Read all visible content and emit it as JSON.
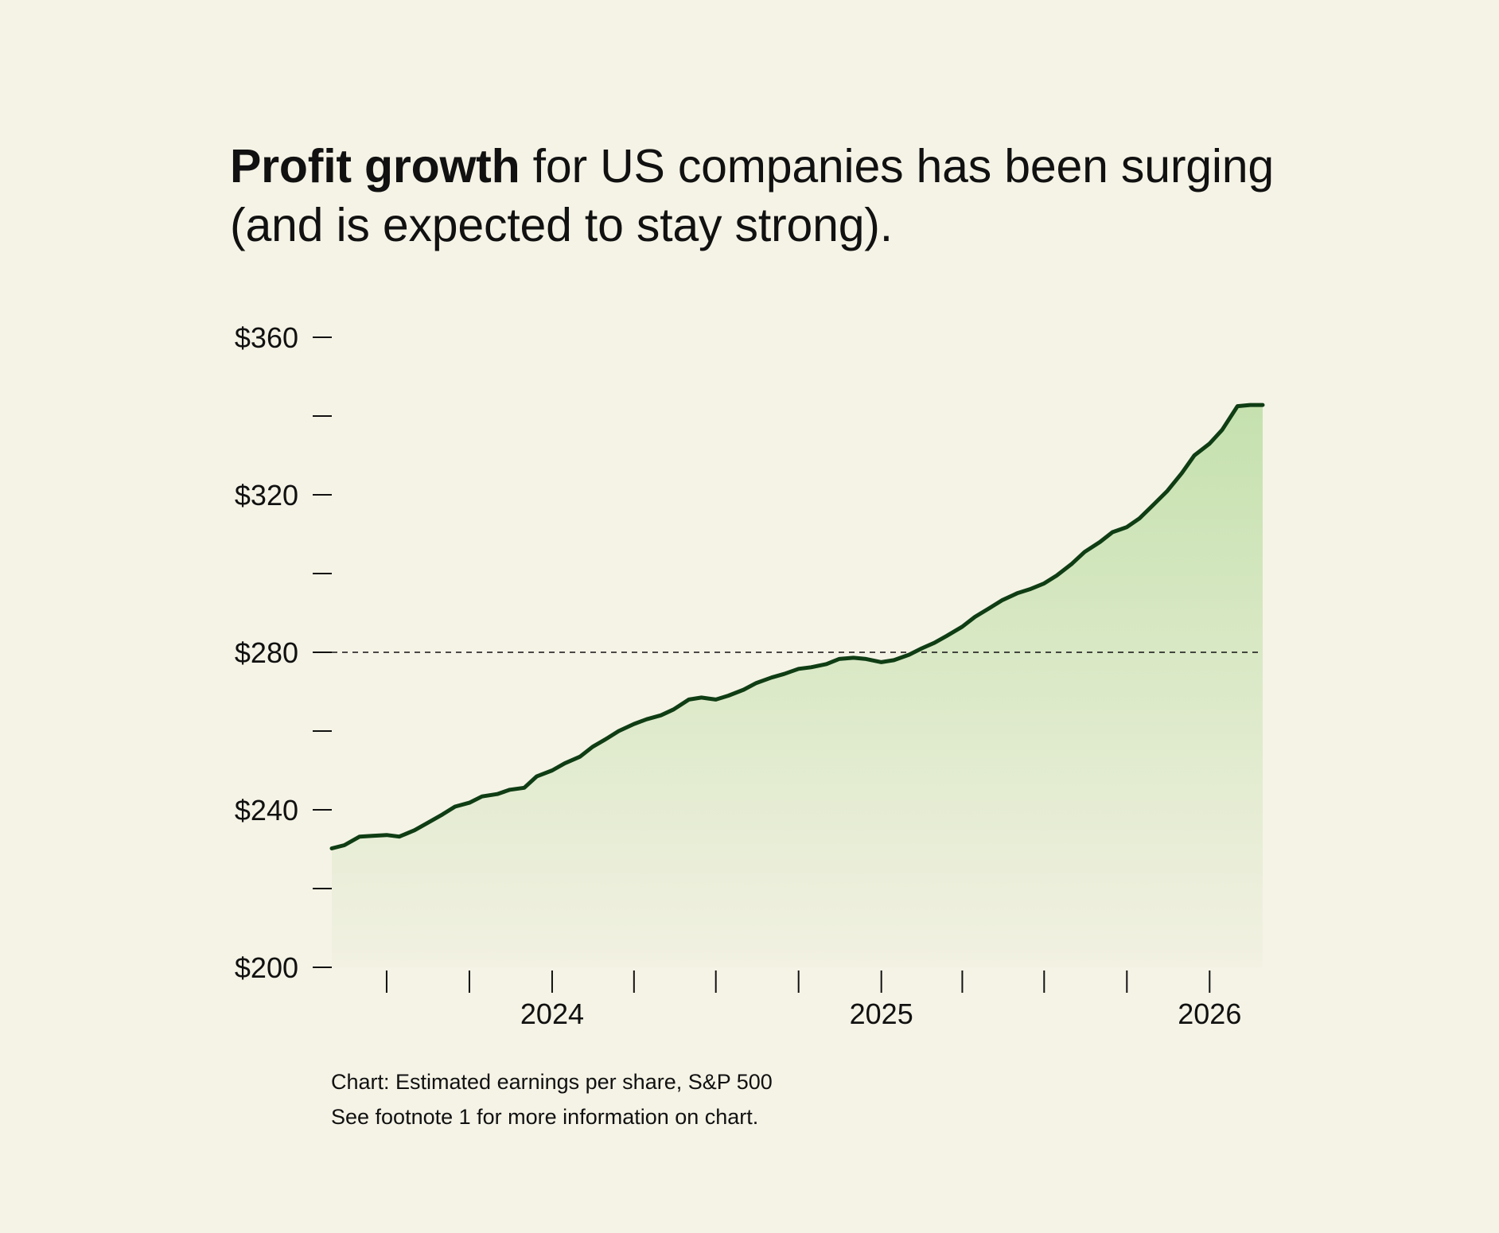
{
  "headline": {
    "bold": "Profit growth",
    "rest": " for US companies has been surging (and is expected to stay strong)."
  },
  "caption": {
    "line1": "Chart: Estimated earnings per share, S&P 500",
    "line2": "See footnote 1 for more information on chart."
  },
  "colors": {
    "background": "#f5f3e6",
    "line": "#0f3d14",
    "area_top": "#c5e1ae",
    "area_bottom": "#f2f1e2",
    "reference_line": "#111111"
  },
  "chart_data": {
    "type": "area",
    "xlabel": "",
    "ylabel": "",
    "ylim": [
      200,
      360
    ],
    "xlim": [
      "2023-05-01",
      "2026-03-01"
    ],
    "y_ticks": [
      200,
      220,
      240,
      260,
      280,
      300,
      320,
      340,
      360
    ],
    "y_tick_labels": [
      "$200",
      "",
      "$240",
      "",
      "$280",
      "",
      "$320",
      "",
      "$360"
    ],
    "x_ticks": [
      "2023-07-01",
      "2023-10-01",
      "2024-01-01",
      "2024-04-01",
      "2024-07-01",
      "2025-01-01",
      "2025-04-01",
      "2025-07-01",
      "2025-10-01",
      "2026-01-01"
    ],
    "x_ticks_all": [
      "2023-07-01",
      "2023-10-01",
      "2024-01-01",
      "2024-04-01",
      "2024-07-01",
      "2024-10-01",
      "2025-01-01",
      "2025-04-01",
      "2025-07-01",
      "2025-10-01",
      "2026-01-01"
    ],
    "x_tick_labels": [
      {
        "x": "2024-01-01",
        "label": "2024"
      },
      {
        "x": "2025-01-01",
        "label": "2025"
      },
      {
        "x": "2026-01-01",
        "label": "2026"
      }
    ],
    "reference_line": {
      "y": 280,
      "style": "dashed"
    },
    "grid": false,
    "legend": "none",
    "series": [
      {
        "x": [
          "2023-05-01",
          "2023-05-15",
          "2023-06-01",
          "2023-06-15",
          "2023-07-01",
          "2023-07-15",
          "2023-08-01",
          "2023-08-15",
          "2023-09-01",
          "2023-09-15",
          "2023-10-01",
          "2023-10-15",
          "2023-11-01",
          "2023-11-15",
          "2023-12-01",
          "2023-12-15",
          "2024-01-01",
          "2024-01-15",
          "2024-02-01",
          "2024-02-15",
          "2024-03-01",
          "2024-03-15",
          "2024-04-01",
          "2024-04-15",
          "2024-05-01",
          "2024-05-15",
          "2024-06-01",
          "2024-06-15",
          "2024-07-01",
          "2024-07-15",
          "2024-08-01",
          "2024-08-15",
          "2024-09-01",
          "2024-09-15",
          "2024-10-01",
          "2024-10-15",
          "2024-11-01",
          "2024-11-15",
          "2024-12-01",
          "2024-12-15",
          "2025-01-01",
          "2025-01-15",
          "2025-02-01",
          "2025-02-15",
          "2025-03-01",
          "2025-03-15",
          "2025-04-01",
          "2025-04-15",
          "2025-05-01",
          "2025-05-15",
          "2025-06-01",
          "2025-06-15",
          "2025-07-01",
          "2025-07-15",
          "2025-08-01",
          "2025-08-15",
          "2025-09-01",
          "2025-09-15",
          "2025-10-01",
          "2025-10-15",
          "2025-11-01",
          "2025-11-15",
          "2025-12-01",
          "2025-12-15",
          "2026-01-01",
          "2026-01-15",
          "2026-02-01",
          "2026-02-15",
          "2026-03-01"
        ],
        "values": [
          230.2,
          231.0,
          233.2,
          233.4,
          233.6,
          233.2,
          234.8,
          236.6,
          238.8,
          240.8,
          241.8,
          243.4,
          244.0,
          245.1,
          245.6,
          248.5,
          250.0,
          251.8,
          253.5,
          256.0,
          258.0,
          260.0,
          261.8,
          263.0,
          264.0,
          265.5,
          268.0,
          268.5,
          268.0,
          269.0,
          270.5,
          272.2,
          273.6,
          274.5,
          275.8,
          276.2,
          277.0,
          278.3,
          278.6,
          278.3,
          277.5,
          278.0,
          279.4,
          281.0,
          282.4,
          284.2,
          286.5,
          289.0,
          291.2,
          293.2,
          295.0,
          296.0,
          297.5,
          299.5,
          302.5,
          305.5,
          308.0,
          310.5,
          311.8,
          314.0,
          317.8,
          321.0,
          325.5,
          330.0,
          333.0,
          336.5,
          342.5,
          342.8,
          342.8
        ]
      }
    ]
  }
}
